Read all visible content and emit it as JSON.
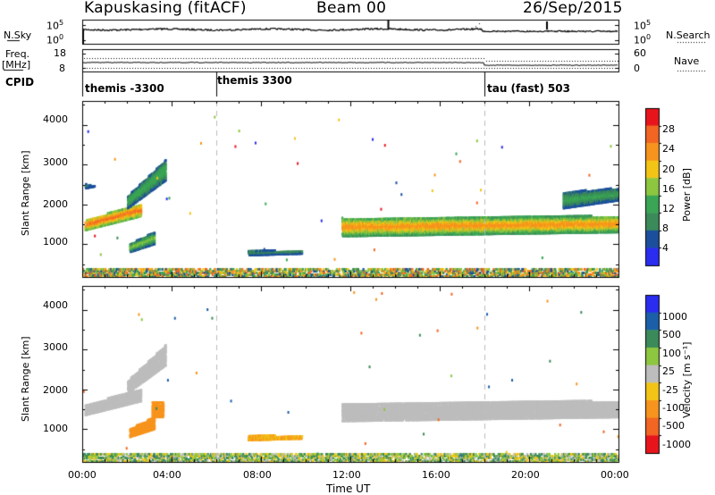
{
  "header": {
    "station": "Kapuskasing (fitACF)",
    "beam": "Beam 00",
    "date": "26/Sep/2015"
  },
  "strip_panels": {
    "nsky_label": "N.Sky",
    "nsky_ticks": [
      "10^5",
      "10^0"
    ],
    "nsky_right_ticks": [
      "10^5",
      "10^0"
    ],
    "nsearch_label": "N.Search",
    "freq_label": "Freq.",
    "freq_unit": "[MHz]",
    "freq_ticks": [
      "18",
      "8"
    ],
    "nave_ticks": [
      "60",
      "0"
    ],
    "nave_label": "Nave",
    "cpid_label": "CPID"
  },
  "cpid_segments": [
    {
      "label": "themis -3300",
      "start_hour": 0
    },
    {
      "label": "themis 3300",
      "start_hour": 6
    },
    {
      "label": "tau (fast) 503",
      "start_hour": 18
    }
  ],
  "axes": {
    "ylabel": "Slant Range [km]",
    "xlabel": "Time UT",
    "y_ticks": [
      "4000",
      "3000",
      "2000",
      "1000"
    ],
    "x_ticks": [
      "00:00",
      "04:00",
      "08:00",
      "12:00",
      "16:00",
      "20:00",
      "00:00"
    ]
  },
  "power_scale": {
    "label": "Power [dB]",
    "ticks": [
      "28",
      "24",
      "20",
      "16",
      "12",
      "8",
      "4"
    ],
    "colors": [
      "#e8141c",
      "#f26522",
      "#f7941d",
      "#f2c416",
      "#8dc63f",
      "#3aa655",
      "#3b8a5a",
      "#1b4f9c",
      "#2a2df0"
    ]
  },
  "velocity_scale": {
    "label": "Velocity [m s⁻¹]",
    "ticks": [
      "1000",
      "500",
      "100",
      "25",
      "-25",
      "-100",
      "-500",
      "-1000"
    ],
    "colors": [
      "#2a2df0",
      "#1b5fa8",
      "#3a8a5a",
      "#8dc63f",
      "#bdbdbd",
      "#f2c416",
      "#f7941d",
      "#f26522",
      "#e8141c"
    ]
  },
  "chart_data": [
    {
      "type": "heatmap",
      "title": "Power",
      "xlabel": "Time UT",
      "ylabel": "Slant Range [km]",
      "xlim": [
        0,
        24
      ],
      "ylim": [
        180,
        4600
      ],
      "colorbar_label": "Power [dB]",
      "colorbar_range": [
        0,
        32
      ],
      "regions": [
        {
          "name": "early echo lower",
          "x": [
            0.1,
            2.6
          ],
          "y_start": [
            1350,
            1700
          ],
          "y_end": [
            1600,
            2000
          ],
          "value_range": [
            12,
            26
          ]
        },
        {
          "name": "early echo upper",
          "x": [
            0.1,
            1.0
          ],
          "y_start": [
            2400,
            2500
          ],
          "y_end": [
            2500,
            2400
          ],
          "value_range": [
            4,
            10
          ]
        },
        {
          "name": "early echo rise",
          "x": [
            2.0,
            3.7
          ],
          "y_start": [
            1900,
            2600
          ],
          "y_end": [
            2200,
            3100
          ],
          "value_range": [
            4,
            14
          ]
        },
        {
          "name": "early echo blob",
          "x": [
            2.1,
            3.2
          ],
          "y_start": [
            800,
            1000
          ],
          "y_end": [
            1000,
            1300
          ],
          "value_range": [
            4,
            16
          ]
        },
        {
          "name": "morning echo",
          "x": [
            7.4,
            9.8
          ],
          "y_start": [
            720,
            760
          ],
          "y_end": [
            840,
            820
          ],
          "value_range": [
            4,
            10
          ]
        },
        {
          "name": "afternoon echo",
          "x": [
            11.6,
            24.0
          ],
          "y_start": [
            1200,
            1300
          ],
          "y_end": [
            1650,
            1700
          ],
          "value_range": [
            8,
            24
          ]
        },
        {
          "name": "late echo upper",
          "x": [
            21.5,
            24.0
          ],
          "y_start": [
            1900,
            2100
          ],
          "y_end": [
            2300,
            2400
          ],
          "value_range": [
            4,
            12
          ]
        },
        {
          "name": "near range clutter",
          "x": [
            0,
            24
          ],
          "y_start": [
            180,
            180
          ],
          "y_end": [
            400,
            400
          ],
          "value_range": [
            4,
            28
          ]
        }
      ]
    },
    {
      "type": "heatmap",
      "title": "Velocity",
      "xlabel": "Time UT",
      "ylabel": "Slant Range [km]",
      "xlim": [
        0,
        24
      ],
      "ylim": [
        180,
        4600
      ],
      "colorbar_label": "Velocity [m s⁻¹]",
      "colorbar_range": [
        -1000,
        1000
      ],
      "regions": [
        {
          "name": "early echo lower",
          "x": [
            0.1,
            2.6
          ],
          "y_start": [
            1350,
            1700
          ],
          "y_end": [
            1600,
            2000
          ],
          "value_range": [
            -25,
            25
          ]
        },
        {
          "name": "early echo rise",
          "x": [
            2.0,
            3.7
          ],
          "y_start": [
            1900,
            2600
          ],
          "y_end": [
            2200,
            3100
          ],
          "value_range": [
            -25,
            25
          ]
        },
        {
          "name": "early echo blob",
          "x": [
            2.1,
            3.2
          ],
          "y_start": [
            800,
            1000
          ],
          "y_end": [
            1000,
            1300
          ],
          "value_range": [
            -300,
            -100
          ]
        },
        {
          "name": "orange patch",
          "x": [
            3.1,
            3.6
          ],
          "y_start": [
            1300,
            1300
          ],
          "y_end": [
            1700,
            1700
          ],
          "value_range": [
            -500,
            -100
          ]
        },
        {
          "name": "morning echo",
          "x": [
            7.4,
            9.8
          ],
          "y_start": [
            720,
            760
          ],
          "y_end": [
            840,
            820
          ],
          "value_range": [
            -150,
            -50
          ]
        },
        {
          "name": "afternoon echo",
          "x": [
            11.6,
            24.0
          ],
          "y_start": [
            1200,
            1300
          ],
          "y_end": [
            1650,
            1700
          ],
          "value_range": [
            -25,
            25
          ]
        },
        {
          "name": "near range clutter",
          "x": [
            0,
            24
          ],
          "y_start": [
            180,
            180
          ],
          "y_end": [
            400,
            400
          ],
          "value_range": [
            -100,
            200
          ]
        }
      ]
    }
  ]
}
